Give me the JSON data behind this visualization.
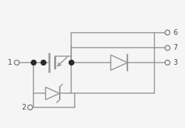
{
  "line_color": "#999999",
  "dot_color": "#2a2a2a",
  "bg_color": "#f5f5f5",
  "terminal_color": "#888888",
  "line_width": 1.1,
  "figsize": [
    2.6,
    1.8
  ],
  "dpi": 100
}
